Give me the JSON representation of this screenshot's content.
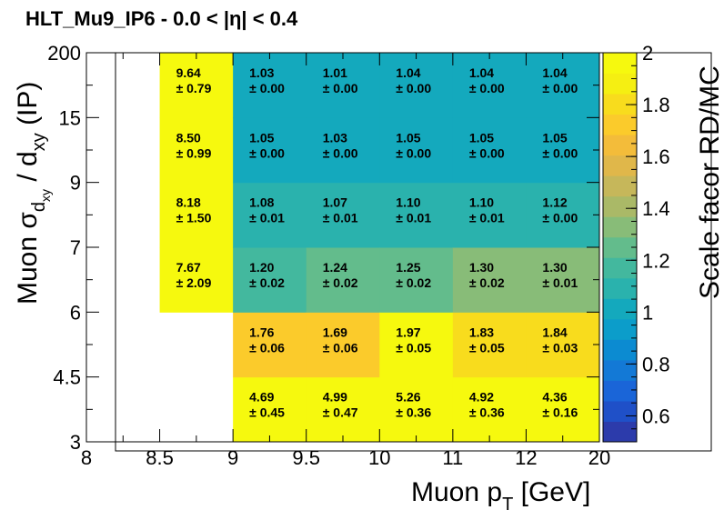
{
  "chart_data": {
    "type": "heatmap",
    "title": "HLT_Mu9_IP6  -  0.0 < |η| < 0.4",
    "xlabel": "Muon p",
    "xlabel_sub": "T",
    "xlabel_unit": " [GeV]",
    "ylabel": "Muon σ",
    "ylabel_sub": "d",
    "ylabel_subsub": "xy",
    "ylabel_rest": " / d",
    "ylabel_rest_sub": "xy",
    "ylabel_tail": " (IP)",
    "zlabel": "Scale facor RD/MC",
    "x_ticks": [
      "8",
      "8.5",
      "9",
      "9.5",
      "10",
      "11",
      "12",
      "20"
    ],
    "y_ticks": [
      "3",
      "4.5",
      "6",
      "7",
      "9",
      "15",
      "200"
    ],
    "x_bins": [
      [
        8.5,
        9
      ],
      [
        9,
        9.5
      ],
      [
        9.5,
        10
      ],
      [
        10,
        11
      ],
      [
        11,
        12
      ],
      [
        12,
        20
      ]
    ],
    "y_bins": [
      [
        3,
        4.5
      ],
      [
        4.5,
        6
      ],
      [
        6,
        7
      ],
      [
        7,
        9
      ],
      [
        9,
        15
      ],
      [
        15,
        200
      ]
    ],
    "zlim": [
      0.5,
      2
    ],
    "z_ticks": [
      "0.6",
      "0.8",
      "1",
      "1.2",
      "1.4",
      "1.6",
      "1.8",
      "2"
    ],
    "cells": [
      {
        "x": 0,
        "y": 2,
        "value": "7.67",
        "error": "± 2.09"
      },
      {
        "x": 0,
        "y": 3,
        "value": "8.18",
        "error": "± 1.50"
      },
      {
        "x": 0,
        "y": 4,
        "value": "8.50",
        "error": "± 0.99"
      },
      {
        "x": 0,
        "y": 5,
        "value": "9.64",
        "error": "± 0.79"
      },
      {
        "x": 1,
        "y": 0,
        "value": "4.69",
        "error": "± 0.45"
      },
      {
        "x": 1,
        "y": 1,
        "value": "1.76",
        "error": "± 0.06"
      },
      {
        "x": 1,
        "y": 2,
        "value": "1.20",
        "error": "± 0.02"
      },
      {
        "x": 1,
        "y": 3,
        "value": "1.08",
        "error": "± 0.01"
      },
      {
        "x": 1,
        "y": 4,
        "value": "1.05",
        "error": "± 0.00"
      },
      {
        "x": 1,
        "y": 5,
        "value": "1.03",
        "error": "± 0.00"
      },
      {
        "x": 2,
        "y": 0,
        "value": "4.99",
        "error": "± 0.47"
      },
      {
        "x": 2,
        "y": 1,
        "value": "1.69",
        "error": "± 0.06"
      },
      {
        "x": 2,
        "y": 2,
        "value": "1.24",
        "error": "± 0.02"
      },
      {
        "x": 2,
        "y": 3,
        "value": "1.07",
        "error": "± 0.01"
      },
      {
        "x": 2,
        "y": 4,
        "value": "1.03",
        "error": "± 0.00"
      },
      {
        "x": 2,
        "y": 5,
        "value": "1.01",
        "error": "± 0.00"
      },
      {
        "x": 3,
        "y": 0,
        "value": "5.26",
        "error": "± 0.36"
      },
      {
        "x": 3,
        "y": 1,
        "value": "1.97",
        "error": "± 0.05"
      },
      {
        "x": 3,
        "y": 2,
        "value": "1.25",
        "error": "± 0.02"
      },
      {
        "x": 3,
        "y": 3,
        "value": "1.10",
        "error": "± 0.01"
      },
      {
        "x": 3,
        "y": 4,
        "value": "1.05",
        "error": "± 0.00"
      },
      {
        "x": 3,
        "y": 5,
        "value": "1.04",
        "error": "± 0.00"
      },
      {
        "x": 4,
        "y": 0,
        "value": "4.92",
        "error": "± 0.36"
      },
      {
        "x": 4,
        "y": 1,
        "value": "1.83",
        "error": "± 0.05"
      },
      {
        "x": 4,
        "y": 2,
        "value": "1.30",
        "error": "± 0.02"
      },
      {
        "x": 4,
        "y": 3,
        "value": "1.10",
        "error": "± 0.01"
      },
      {
        "x": 4,
        "y": 4,
        "value": "1.05",
        "error": "± 0.00"
      },
      {
        "x": 4,
        "y": 5,
        "value": "1.04",
        "error": "± 0.00"
      },
      {
        "x": 5,
        "y": 0,
        "value": "4.36",
        "error": "± 0.16"
      },
      {
        "x": 5,
        "y": 1,
        "value": "1.84",
        "error": "± 0.03"
      },
      {
        "x": 5,
        "y": 2,
        "value": "1.30",
        "error": "± 0.01"
      },
      {
        "x": 5,
        "y": 3,
        "value": "1.12",
        "error": "± 0.00"
      },
      {
        "x": 5,
        "y": 4,
        "value": "1.05",
        "error": "± 0.00"
      },
      {
        "x": 5,
        "y": 5,
        "value": "1.04",
        "error": "± 0.00"
      }
    ],
    "palette": [
      "#2c3bab",
      "#1f50c8",
      "#1a65d8",
      "#1379d6",
      "#0c8bd1",
      "#0c9dca",
      "#14a9bd",
      "#2ab2ad",
      "#43b89e",
      "#63bc8c",
      "#88bc78",
      "#aab967",
      "#c6b75a",
      "#e0b74a",
      "#f3bc3a",
      "#fbcb2b",
      "#f8dc1d",
      "#f5ef12",
      "#f6f90e"
    ],
    "grid": false,
    "colorbar": "right"
  }
}
